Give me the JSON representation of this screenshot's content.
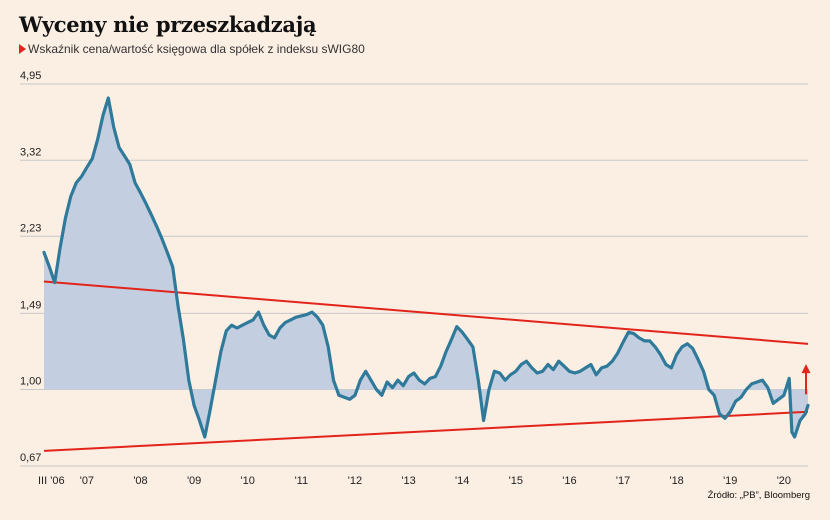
{
  "header": {
    "title": "Wyceny nie przeszkadzają",
    "subtitle": "Wskaźnik cena/wartość księgowa dla spółek z indeksu sWIG80"
  },
  "source": "Źródło: „PB”, Bloomberg",
  "colors": {
    "background": "#fbeee3",
    "line": "#2f7a9a",
    "area": "#c3cfe0",
    "trend": "#e3241b",
    "grid": "#c8c8c8"
  },
  "chart_data": {
    "type": "area",
    "title": "Wyceny nie przeszkadzają",
    "subtitle": "Wskaźnik cena/wartość księgowa dla spółek z indeksu sWIG80",
    "y_scale": "log",
    "ylim": [
      0.67,
      4.95
    ],
    "baseline": 1.0,
    "y_ticks": [
      0.67,
      1.0,
      1.49,
      2.23,
      3.32,
      4.95
    ],
    "y_tick_labels": [
      "0,67",
      "1,00",
      "1,49",
      "2,23",
      "3,32",
      "4,95"
    ],
    "x_range": [
      2006.2,
      2020.45
    ],
    "x_ticks": [
      2006.2,
      2007,
      2008,
      2009,
      2010,
      2011,
      2012,
      2013,
      2014,
      2015,
      2016,
      2017,
      2018,
      2019,
      2020
    ],
    "x_tick_labels": [
      "III '06",
      "'07",
      "'08",
      "'09",
      "'10",
      "'11",
      "'12",
      "'13",
      "'14",
      "'15",
      "'16",
      "'17",
      "'18",
      "'19",
      "'20"
    ],
    "grid": "horizontal",
    "legend": "none",
    "series": [
      {
        "x": [
          2006.2,
          2006.3,
          2006.4,
          2006.5,
          2006.6,
          2006.7,
          2006.8,
          2006.9,
          2007.0,
          2007.1,
          2007.2,
          2007.3,
          2007.4,
          2007.5,
          2007.6,
          2007.7,
          2007.8,
          2007.9,
          2008.0,
          2008.1,
          2008.2,
          2008.3,
          2008.4,
          2008.5,
          2008.6,
          2008.7,
          2008.8,
          2008.9,
          2009.0,
          2009.1,
          2009.2,
          2009.3,
          2009.4,
          2009.5,
          2009.6,
          2009.7,
          2009.8,
          2009.9,
          2010.0,
          2010.1,
          2010.2,
          2010.3,
          2010.4,
          2010.5,
          2010.6,
          2010.7,
          2010.8,
          2010.9,
          2011.0,
          2011.1,
          2011.2,
          2011.3,
          2011.4,
          2011.5,
          2011.6,
          2011.7,
          2011.8,
          2011.9,
          2012.0,
          2012.1,
          2012.2,
          2012.3,
          2012.4,
          2012.5,
          2012.6,
          2012.7,
          2012.8,
          2012.9,
          2013.0,
          2013.1,
          2013.2,
          2013.3,
          2013.4,
          2013.5,
          2013.6,
          2013.7,
          2013.8,
          2013.9,
          2014.0,
          2014.1,
          2014.2,
          2014.3,
          2014.4,
          2014.5,
          2014.6,
          2014.7,
          2014.8,
          2014.9,
          2015.0,
          2015.1,
          2015.2,
          2015.3,
          2015.4,
          2015.5,
          2015.6,
          2015.7,
          2015.8,
          2015.9,
          2016.0,
          2016.1,
          2016.2,
          2016.3,
          2016.4,
          2016.5,
          2016.6,
          2016.7,
          2016.8,
          2016.9,
          2017.0,
          2017.1,
          2017.2,
          2017.3,
          2017.4,
          2017.5,
          2017.6,
          2017.7,
          2017.8,
          2017.9,
          2018.0,
          2018.1,
          2018.2,
          2018.3,
          2018.4,
          2018.5,
          2018.6,
          2018.7,
          2018.8,
          2018.9,
          2019.0,
          2019.1,
          2019.2,
          2019.3,
          2019.4,
          2019.5,
          2019.6,
          2019.7,
          2019.8,
          2019.9,
          2020.0,
          2020.1,
          2020.15,
          2020.2,
          2020.3,
          2020.4,
          2020.45
        ],
        "y": [
          2.05,
          1.9,
          1.75,
          2.1,
          2.45,
          2.75,
          2.95,
          3.05,
          3.2,
          3.35,
          3.7,
          4.2,
          4.6,
          3.95,
          3.55,
          3.4,
          3.25,
          2.95,
          2.8,
          2.65,
          2.5,
          2.35,
          2.2,
          2.05,
          1.9,
          1.55,
          1.3,
          1.05,
          0.92,
          0.85,
          0.78,
          0.9,
          1.05,
          1.22,
          1.36,
          1.4,
          1.38,
          1.4,
          1.42,
          1.44,
          1.5,
          1.4,
          1.33,
          1.31,
          1.38,
          1.42,
          1.44,
          1.46,
          1.47,
          1.48,
          1.5,
          1.46,
          1.4,
          1.25,
          1.05,
          0.97,
          0.96,
          0.95,
          0.97,
          1.05,
          1.1,
          1.05,
          1.0,
          0.97,
          1.04,
          1.01,
          1.05,
          1.02,
          1.07,
          1.09,
          1.05,
          1.03,
          1.06,
          1.07,
          1.13,
          1.22,
          1.3,
          1.39,
          1.35,
          1.3,
          1.25,
          1.05,
          0.85,
          1.0,
          1.1,
          1.09,
          1.05,
          1.08,
          1.1,
          1.14,
          1.16,
          1.12,
          1.09,
          1.1,
          1.14,
          1.11,
          1.16,
          1.13,
          1.1,
          1.09,
          1.1,
          1.12,
          1.14,
          1.08,
          1.12,
          1.13,
          1.16,
          1.21,
          1.28,
          1.35,
          1.34,
          1.31,
          1.29,
          1.29,
          1.25,
          1.2,
          1.14,
          1.12,
          1.2,
          1.25,
          1.27,
          1.24,
          1.17,
          1.1,
          1.0,
          0.97,
          0.88,
          0.86,
          0.89,
          0.94,
          0.96,
          1.0,
          1.03,
          1.04,
          1.05,
          1.01,
          0.93,
          0.95,
          0.97,
          1.06,
          0.8,
          0.78,
          0.85,
          0.88,
          0.92
        ]
      }
    ],
    "trendlines": [
      {
        "x": [
          2006.2,
          2020.45
        ],
        "y": [
          1.76,
          1.27
        ]
      },
      {
        "x": [
          2006.2,
          2020.45
        ],
        "y": [
          0.725,
          0.89
        ]
      }
    ],
    "arrow": {
      "x": 2020.45,
      "from": 0.975,
      "to": 1.13
    }
  }
}
